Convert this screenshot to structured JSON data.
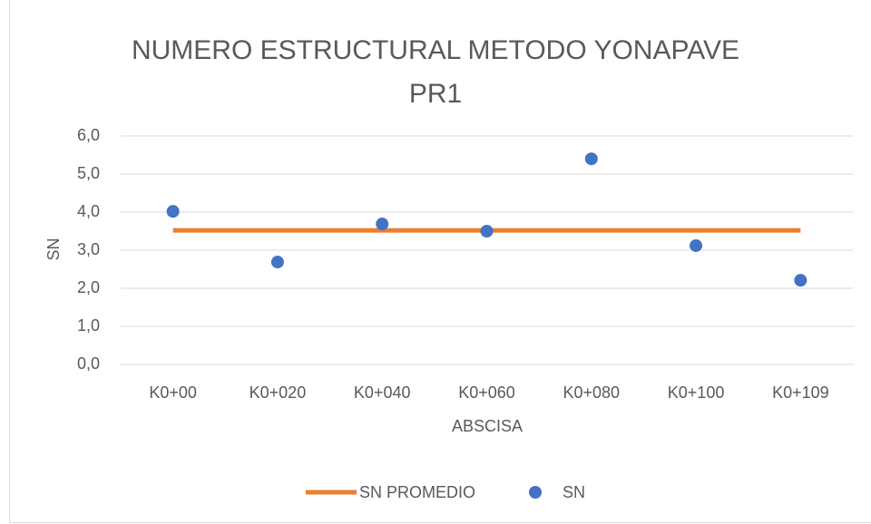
{
  "chart_data": {
    "type": "line",
    "title": "NUMERO ESTRUCTURAL METODO YONAPAVE PR1",
    "x_label": "ABSCISA",
    "y_label": "SN",
    "categories": [
      "K0+00",
      "K0+020",
      "K0+040",
      "K0+060",
      "K0+080",
      "K0+100",
      "K0+109"
    ],
    "series": [
      {
        "name": "SN PROMEDIO",
        "color": "#ed7d31",
        "style": "line",
        "values": [
          3.52,
          3.52,
          3.52,
          3.52,
          3.52,
          3.52,
          3.52
        ]
      },
      {
        "name": "SN",
        "color": "#4472c4",
        "style": "markers",
        "values": [
          4.02,
          2.69,
          3.69,
          3.5,
          5.4,
          3.12,
          2.21
        ]
      }
    ],
    "ylim": [
      0,
      6
    ],
    "yticks": [
      {
        "value": 0,
        "label": "0,0"
      },
      {
        "value": 1,
        "label": "1,0"
      },
      {
        "value": 2,
        "label": "2,0"
      },
      {
        "value": 3,
        "label": "3,0"
      },
      {
        "value": 4,
        "label": "4,0"
      },
      {
        "value": 5,
        "label": "5,0"
      },
      {
        "value": 6,
        "label": "6,0"
      }
    ],
    "grid": true,
    "legend": "bottom"
  }
}
